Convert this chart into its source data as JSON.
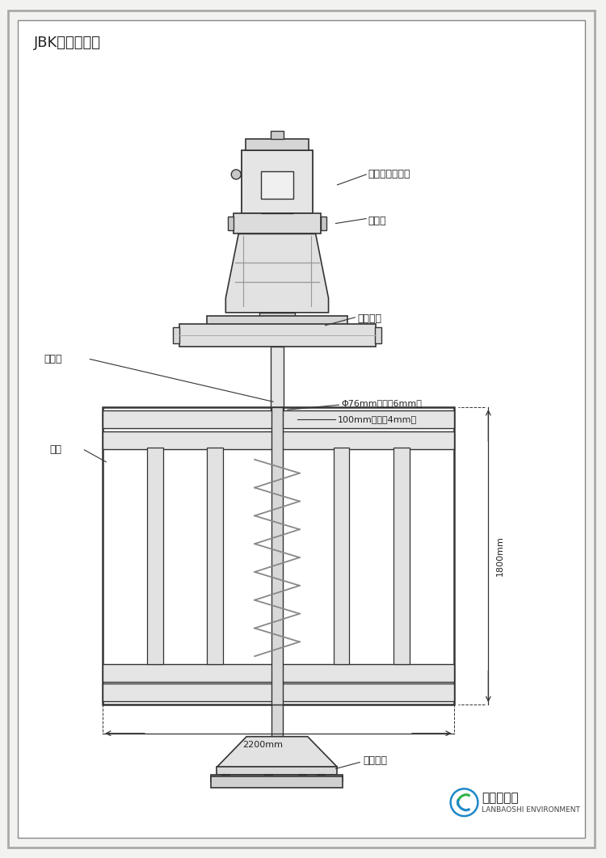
{
  "title": "JBK框式搅拌机",
  "bg_color": "#f2f2f0",
  "border_color": "#888888",
  "line_color": "#555555",
  "dark_line": "#333333",
  "label_motor": "电机（减速机）",
  "label_coupling": "联轴器",
  "label_base_support": "底座支架",
  "label_stir_shaft": "搅拌轴",
  "label_frame": "框架",
  "label_dim1": "Φ76mm（厅度6mm）",
  "label_dim2": "100mm（厅度4mm）",
  "label_height": "1800mm",
  "label_width": "2200mm",
  "label_underwater": "水下支座",
  "logo_text": "蓝宝石环保",
  "logo_sub": "LANBAOSHI ENVIRONMENT"
}
